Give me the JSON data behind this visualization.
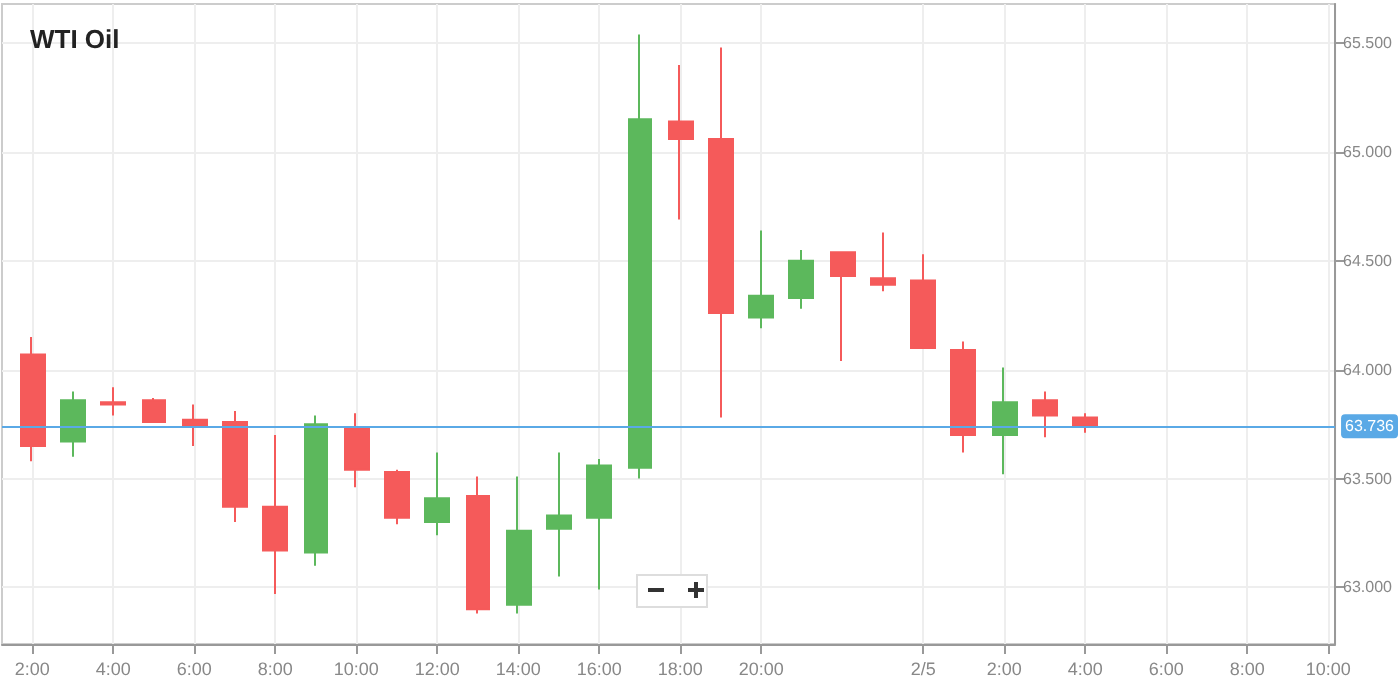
{
  "chart_data": {
    "type": "candlestick",
    "title": "WTI Oil",
    "x": [
      "--02-04T02:00",
      "--02-04T03:00",
      "--02-04T04:00",
      "--02-04T05:00",
      "--02-04T06:00",
      "--02-04T07:00",
      "--02-04T08:00",
      "--02-04T09:00",
      "--02-04T10:00",
      "--02-04T11:00",
      "--02-04T12:00",
      "--02-04T13:00",
      "--02-04T14:00",
      "--02-04T15:00",
      "--02-04T16:00",
      "--02-04T17:00",
      "--02-04T18:00",
      "--02-04T19:00",
      "--02-04T20:00",
      "--02-04T21:00",
      "--02-04T22:00",
      "--02-04T23:00",
      "--02-05T00:00",
      "--02-05T01:00",
      "--02-05T02:00",
      "--02-05T03:00",
      "--02-05T04:00"
    ],
    "ohlc": [
      [
        64.07,
        64.15,
        63.58,
        63.65
      ],
      [
        63.67,
        63.9,
        63.6,
        63.86
      ],
      [
        63.85,
        63.92,
        63.79,
        63.84
      ],
      [
        63.86,
        63.87,
        63.76,
        63.76
      ],
      [
        63.77,
        63.84,
        63.65,
        63.74
      ],
      [
        63.76,
        63.81,
        63.3,
        63.37
      ],
      [
        63.37,
        63.7,
        62.97,
        63.17
      ],
      [
        63.16,
        63.79,
        63.1,
        63.75
      ],
      [
        63.73,
        63.8,
        63.46,
        63.54
      ],
      [
        63.53,
        63.54,
        63.29,
        63.32
      ],
      [
        63.3,
        63.62,
        63.24,
        63.41
      ],
      [
        63.42,
        63.51,
        62.88,
        62.9
      ],
      [
        62.92,
        63.51,
        62.88,
        63.26
      ],
      [
        63.27,
        63.62,
        63.05,
        63.33
      ],
      [
        63.32,
        63.59,
        62.99,
        63.56
      ],
      [
        63.55,
        65.54,
        63.5,
        65.15
      ],
      [
        65.14,
        65.4,
        64.69,
        65.06
      ],
      [
        65.06,
        65.48,
        63.78,
        64.26
      ],
      [
        64.24,
        64.64,
        64.19,
        64.34
      ],
      [
        64.33,
        64.55,
        64.28,
        64.5
      ],
      [
        64.54,
        64.54,
        64.04,
        64.43
      ],
      [
        64.42,
        64.63,
        64.36,
        64.39
      ],
      [
        64.41,
        64.53,
        64.1,
        64.1
      ],
      [
        64.09,
        64.13,
        63.62,
        63.7
      ],
      [
        63.7,
        64.01,
        63.52,
        63.85
      ],
      [
        63.86,
        63.9,
        63.69,
        63.79
      ],
      [
        63.78,
        63.8,
        63.71,
        63.74
      ]
    ],
    "colors": [
      "#f55a5a",
      "#5cb85c",
      "#f55a5a",
      "#f55a5a",
      "#f55a5a",
      "#f55a5a",
      "#f55a5a",
      "#5cb85c",
      "#f55a5a",
      "#f55a5a",
      "#5cb85c",
      "#f55a5a",
      "#5cb85c",
      "#5cb85c",
      "#5cb85c",
      "#5cb85c",
      "#f55a5a",
      "#f55a5a",
      "#5cb85c",
      "#5cb85c",
      "#f55a5a",
      "#f55a5a",
      "#f55a5a",
      "#f55a5a",
      "#5cb85c",
      "#f55a5a",
      "#f55a5a"
    ],
    "xlim": [
      "--02-04T01:15",
      "--02-05T10:10"
    ],
    "xticks": [
      {
        "value": "--02-04T02:00",
        "label": "2:00"
      },
      {
        "value": "--02-04T04:00",
        "label": "4:00"
      },
      {
        "value": "--02-04T06:00",
        "label": "6:00"
      },
      {
        "value": "--02-04T08:00",
        "label": "8:00"
      },
      {
        "value": "--02-04T10:00",
        "label": "10:00"
      },
      {
        "value": "--02-04T12:00",
        "label": "12:00"
      },
      {
        "value": "--02-04T14:00",
        "label": "14:00"
      },
      {
        "value": "--02-04T16:00",
        "label": "16:00"
      },
      {
        "value": "--02-04T18:00",
        "label": "18:00"
      },
      {
        "value": "--02-04T20:00",
        "label": "20:00"
      },
      {
        "value": "--02-05",
        "label": "2/5"
      },
      {
        "value": "--02-05T02:00",
        "label": "2:00"
      },
      {
        "value": "--02-05T04:00",
        "label": "4:00"
      },
      {
        "value": "--02-05T06:00",
        "label": "6:00"
      },
      {
        "value": "--02-05T08:00",
        "label": "8:00"
      },
      {
        "value": "--02-05T10:00",
        "label": "10:00"
      }
    ],
    "ylim": [
      62.74,
      65.68
    ],
    "yticks": [
      {
        "value": 63,
        "label": "63.000"
      },
      {
        "value": 63.5,
        "label": "63.500"
      },
      {
        "value": 64,
        "label": "64.000"
      },
      {
        "value": 64.5,
        "label": "64.500"
      },
      {
        "value": 65,
        "label": "65.000"
      },
      {
        "value": 65.5,
        "label": "65.500"
      }
    ],
    "ref_lines": [
      {
        "axis": "y",
        "value": 63.736,
        "label": "63.736",
        "color": "#5aa9e6"
      }
    ],
    "grid": true
  }
}
